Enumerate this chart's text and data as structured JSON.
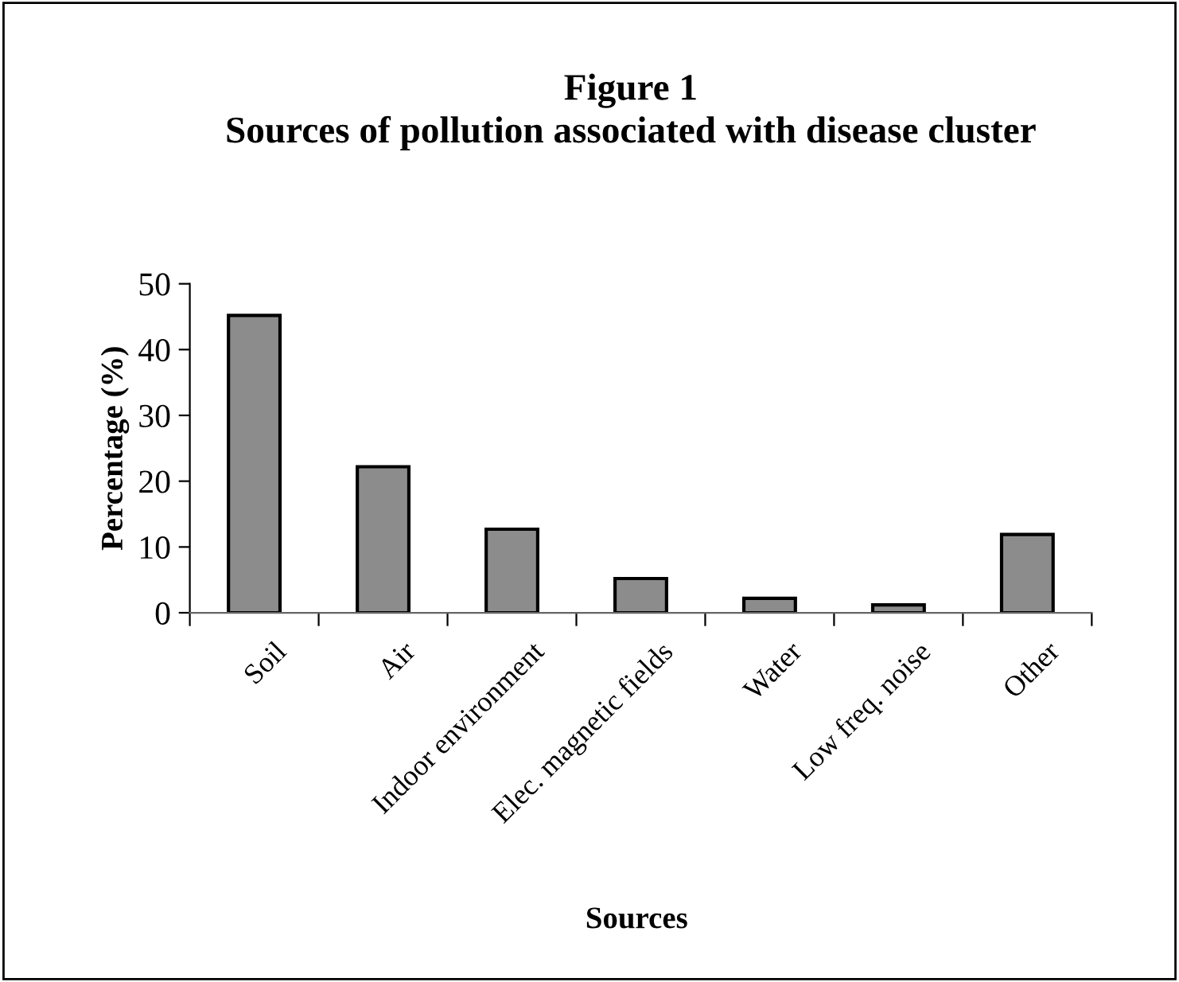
{
  "chart_data": {
    "type": "bar",
    "title": "Figure 1\nSources of pollution associated with disease cluster",
    "xlabel": "Sources",
    "ylabel": "Percentage (%)",
    "categories": [
      "Soil",
      "Air",
      "Indoor environment",
      "Elec. magnetic fields",
      "Water",
      "Low freq. noise",
      "Other"
    ],
    "values": [
      45.2,
      22.2,
      12.7,
      5.2,
      2.2,
      1.2,
      11.9
    ],
    "color": "#8c8c8c",
    "ylim": [
      0,
      50
    ],
    "yticks": [
      0,
      10,
      20,
      30,
      40,
      50
    ],
    "grid": false,
    "legend": false
  }
}
